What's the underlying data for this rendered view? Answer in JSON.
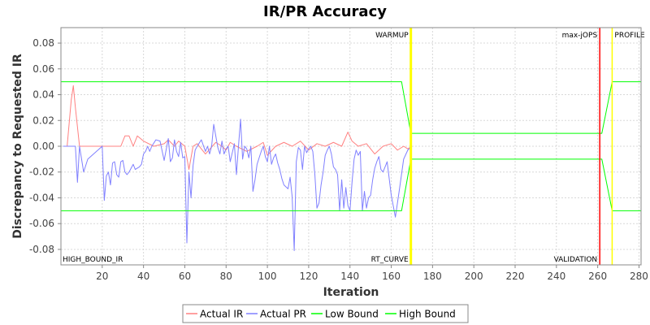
{
  "chart_data": {
    "type": "line",
    "title": "IR/PR Accuracy",
    "xlabel": "Iteration",
    "ylabel": "Discrepancy to Requested IR",
    "xlim": [
      0,
      281
    ],
    "ylim": [
      -0.092,
      0.092
    ],
    "x_ticks": [
      20,
      40,
      60,
      80,
      100,
      120,
      140,
      160,
      180,
      200,
      220,
      240,
      260,
      280
    ],
    "y_ticks": [
      -0.08,
      -0.06,
      -0.04,
      -0.02,
      0.0,
      0.02,
      0.04,
      0.06,
      0.08
    ],
    "y_tick_labels": [
      "-0.08",
      "-0.06",
      "-0.04",
      "-0.02",
      "0.00",
      "0.02",
      "0.04",
      "0.06",
      "0.08"
    ],
    "grid": true,
    "legend": "bottom",
    "markers": [
      {
        "x": 169.5,
        "label": "WARMUP",
        "color": "#ffff00",
        "position": "top-left"
      },
      {
        "x": 261,
        "label": "max-jOPS",
        "color": "#ff0000",
        "position": "top-left"
      },
      {
        "x": 267,
        "label": "PROFILE",
        "color": "#ffff00",
        "position": "top-right"
      },
      {
        "x": 0,
        "label": "HIGH_BOUND_IR",
        "color": "",
        "position": "bottom-right"
      },
      {
        "x": 169.5,
        "label": "RT_CURVE",
        "color": "",
        "position": "bottom-left"
      },
      {
        "x": 261,
        "label": "VALIDATION",
        "color": "",
        "position": "bottom-left"
      }
    ],
    "series": [
      {
        "name": "Actual IR",
        "color": "#ff8080",
        "x": [
          1,
          3,
          5,
          6,
          7,
          9,
          12,
          20,
          29,
          31,
          33,
          35,
          37,
          40,
          45,
          50,
          52,
          55,
          57,
          60,
          62,
          64,
          66,
          70,
          75,
          78,
          80,
          82,
          85,
          90,
          95,
          98,
          100,
          104,
          108,
          112,
          116,
          120,
          124,
          128,
          132,
          136,
          139,
          141,
          144,
          148,
          152,
          156,
          160,
          163,
          166,
          168,
          170
        ],
        "y": [
          0.0,
          0.0,
          0.036,
          0.047,
          0.03,
          0.0,
          0.0,
          0.0,
          0.0,
          0.008,
          0.008,
          0.0,
          0.008,
          0.004,
          0.0,
          0.002,
          0.005,
          0.0,
          0.004,
          0.0,
          -0.018,
          0.0,
          0.002,
          -0.006,
          0.003,
          0.0,
          -0.003,
          0.003,
          0.0,
          -0.004,
          0.0,
          0.003,
          -0.007,
          0.0,
          0.003,
          0.0,
          0.004,
          -0.003,
          0.002,
          0.0,
          0.003,
          0.0,
          0.011,
          0.004,
          0.0,
          0.002,
          -0.006,
          0.0,
          0.002,
          -0.003,
          0.0,
          -0.002,
          0.0
        ]
      },
      {
        "name": "Actual PR",
        "color": "#8080ff",
        "x": [
          1,
          7,
          8,
          9,
          11,
          13,
          20,
          21,
          22,
          23,
          24,
          25,
          26,
          27,
          28,
          29,
          30,
          31,
          32,
          33,
          34,
          35,
          36,
          37,
          38,
          39,
          40,
          41,
          42,
          43,
          44,
          46,
          48,
          50,
          52,
          53,
          54,
          55,
          56,
          57,
          58,
          59,
          60,
          61,
          62,
          63,
          64,
          65,
          66,
          68,
          70,
          71,
          72,
          73,
          74,
          76,
          77,
          78,
          79,
          80,
          81,
          82,
          83,
          84,
          85,
          86,
          87,
          88,
          89,
          90,
          91,
          92,
          93,
          94,
          95,
          96,
          97,
          98,
          99,
          100,
          101,
          102,
          103,
          104,
          105,
          106,
          107,
          108,
          110,
          111,
          112,
          113,
          114,
          115,
          116,
          117,
          118,
          119,
          120,
          121,
          122,
          123,
          124,
          125,
          126,
          127,
          128,
          129,
          130,
          131,
          132,
          133,
          134,
          135,
          136,
          137,
          138,
          139,
          140,
          141,
          142,
          143,
          144,
          145,
          146,
          147,
          148,
          149,
          150,
          151,
          152,
          153,
          154,
          155,
          156,
          157,
          158,
          160,
          162,
          164,
          166,
          168,
          170
        ],
        "y": [
          0.0,
          0.0,
          -0.028,
          0.0,
          -0.02,
          -0.01,
          0.0,
          -0.042,
          -0.023,
          -0.02,
          -0.03,
          -0.013,
          -0.012,
          -0.022,
          -0.024,
          -0.012,
          -0.011,
          -0.02,
          -0.022,
          -0.02,
          -0.017,
          -0.014,
          -0.018,
          -0.017,
          -0.016,
          -0.014,
          -0.006,
          -0.004,
          0.0,
          -0.004,
          0.0,
          0.005,
          0.004,
          -0.011,
          0.006,
          -0.012,
          -0.009,
          0.005,
          -0.004,
          -0.008,
          0.003,
          -0.009,
          -0.008,
          -0.075,
          -0.02,
          -0.04,
          -0.015,
          -0.003,
          0.0,
          0.005,
          -0.004,
          0.0,
          -0.006,
          0.0,
          0.017,
          -0.001,
          -0.006,
          0.004,
          -0.006,
          -0.002,
          0.0,
          -0.012,
          -0.005,
          0.002,
          -0.022,
          0.0,
          0.021,
          -0.01,
          0.0,
          -0.002,
          -0.009,
          0.0,
          -0.035,
          -0.026,
          -0.014,
          -0.009,
          -0.004,
          0.0,
          -0.008,
          -0.012,
          0.0,
          -0.014,
          -0.009,
          -0.006,
          -0.013,
          -0.018,
          -0.025,
          -0.03,
          -0.033,
          -0.024,
          -0.039,
          -0.081,
          -0.012,
          -0.001,
          -0.003,
          -0.018,
          0.0,
          -0.005,
          -0.002,
          0.0,
          -0.004,
          -0.022,
          -0.048,
          -0.044,
          -0.03,
          -0.02,
          -0.007,
          -0.003,
          0.0,
          -0.006,
          -0.016,
          -0.018,
          -0.022,
          -0.05,
          -0.026,
          -0.048,
          -0.032,
          -0.046,
          -0.05,
          -0.028,
          -0.01,
          -0.003,
          -0.007,
          -0.004,
          -0.05,
          -0.035,
          -0.048,
          -0.04,
          -0.038,
          -0.026,
          -0.017,
          -0.012,
          -0.008,
          -0.018,
          -0.02,
          -0.016,
          -0.012,
          -0.038,
          -0.055,
          -0.033,
          -0.01,
          -0.003,
          0.0
        ]
      },
      {
        "name": "Low Bound",
        "color": "#00ff00",
        "x": [
          0,
          165,
          169.5,
          260,
          262,
          267,
          281
        ],
        "y": [
          -0.05,
          -0.05,
          -0.01,
          -0.01,
          -0.01,
          -0.05,
          -0.05
        ]
      },
      {
        "name": "High Bound",
        "color": "#00ff00",
        "x": [
          0,
          165,
          169.5,
          260,
          262,
          267,
          281
        ],
        "y": [
          0.05,
          0.05,
          0.01,
          0.01,
          0.01,
          0.05,
          0.05
        ]
      }
    ]
  }
}
